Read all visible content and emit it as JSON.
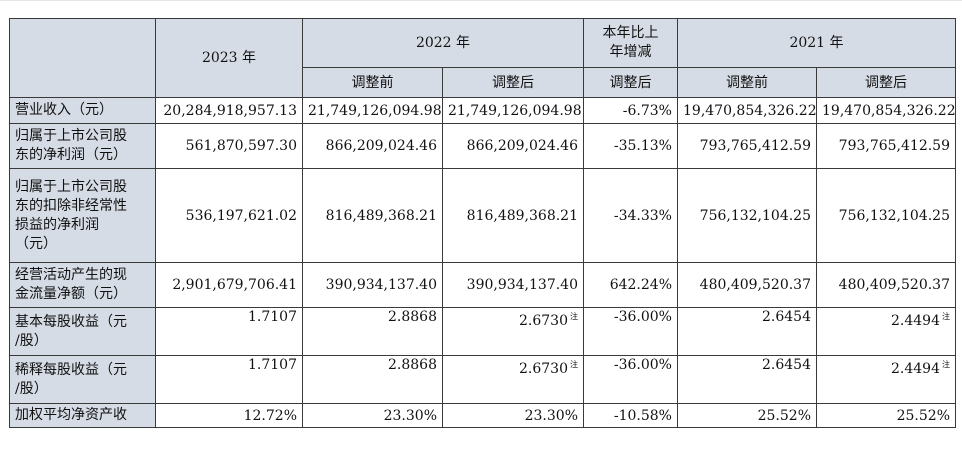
{
  "header": {
    "col_2023": "2023 年",
    "col_2022": "2022 年",
    "col_change": [
      "本年比上",
      "年增减"
    ],
    "col_2021": "2021 年",
    "before": "调整前",
    "after": "调整后"
  },
  "rows": [
    {
      "label": [
        "营业收入（元）"
      ],
      "v2023": "20,284,918,957.13",
      "v2022_before": "21,749,126,094.98",
      "v2022_after": "21,749,126,094.98",
      "change": "-6.73%",
      "v2021_before": "19,470,854,326.22",
      "v2021_after": "19,470,854,326.22",
      "note_mark": ""
    },
    {
      "label": [
        "归属于上市公司股",
        "东的净利润（元）"
      ],
      "v2023": "561,870,597.30",
      "v2022_before": "866,209,024.46",
      "v2022_after": "866,209,024.46",
      "change": "-35.13%",
      "v2021_before": "793,765,412.59",
      "v2021_after": "793,765,412.59",
      "note_mark": ""
    },
    {
      "label": [
        "归属于上市公司股",
        "东的扣除非经常性",
        "损益的净利润",
        "（元）"
      ],
      "v2023": "536,197,621.02",
      "v2022_before": "816,489,368.21",
      "v2022_after": "816,489,368.21",
      "change": "-34.33%",
      "v2021_before": "756,132,104.25",
      "v2021_after": "756,132,104.25",
      "note_mark": ""
    },
    {
      "label": [
        "经营活动产生的现",
        "金流量净额（元）"
      ],
      "v2023": "2,901,679,706.41",
      "v2022_before": "390,934,137.40",
      "v2022_after": "390,934,137.40",
      "change": "642.24%",
      "v2021_before": "480,409,520.37",
      "v2021_after": "480,409,520.37",
      "note_mark": ""
    },
    {
      "label": [
        "基本每股收益（元",
        "/股）"
      ],
      "v2023": "1.7107",
      "v2022_before": "2.8868",
      "v2022_after": "2.6730",
      "change": "-36.00%",
      "v2021_before": "2.6454",
      "v2021_after": "2.4494",
      "note_mark": "注"
    },
    {
      "label": [
        "稀释每股收益（元",
        "/股）"
      ],
      "v2023": "1.7107",
      "v2022_before": "2.8868",
      "v2022_after": "2.6730",
      "change": "-36.00%",
      "v2021_before": "2.6454",
      "v2021_after": "2.4494",
      "note_mark": "注"
    },
    {
      "label": [
        "加权平均净资产收"
      ],
      "v2023": "12.72%",
      "v2022_before": "23.30%",
      "v2022_after": "23.30%",
      "change": "-10.58%",
      "v2021_before": "25.52%",
      "v2021_after": "25.52%",
      "note_mark": ""
    }
  ]
}
